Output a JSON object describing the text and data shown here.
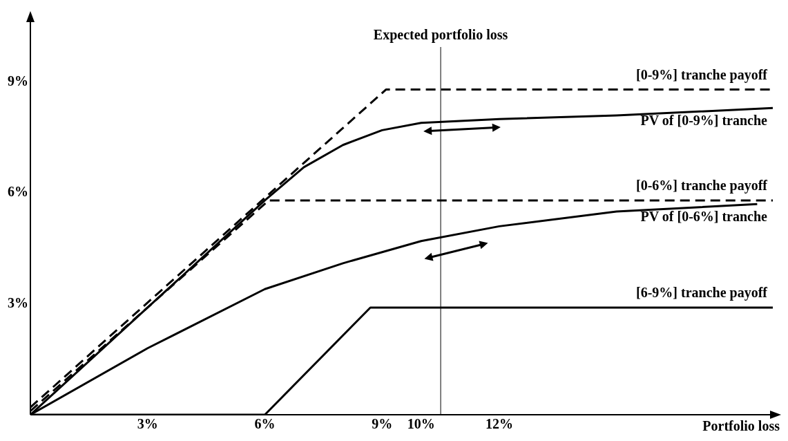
{
  "chart_data": {
    "type": "line",
    "xlabel": "Portfolio loss",
    "xlim": [
      0,
      19
    ],
    "ylim": [
      0,
      10.7
    ],
    "xticks": [
      {
        "value": 3,
        "label": "3%"
      },
      {
        "value": 6,
        "label": "6%"
      },
      {
        "value": 9,
        "label": "9%"
      },
      {
        "value": 10,
        "label": "10%"
      },
      {
        "value": 12,
        "label": "12%"
      }
    ],
    "yticks": [
      {
        "value": 3,
        "label": "3%"
      },
      {
        "value": 6,
        "label": "6%"
      },
      {
        "value": 9,
        "label": "9%"
      }
    ],
    "grid": false,
    "legend": false,
    "marker": "none",
    "ref_lines": [
      {
        "axis": "x",
        "value": 10.5,
        "label": "Expected portfolio loss",
        "color": "#000000"
      }
    ],
    "series": [
      {
        "name": "[0-9%] tranche payoff",
        "color": "#000000",
        "line_style": "dashed",
        "x": [
          0,
          9.1,
          19
        ],
        "values": [
          0.2,
          8.8,
          8.8
        ]
      },
      {
        "name": "PV of [0-9%] tranche",
        "color": "#000000",
        "line_style": "solid",
        "x": [
          0,
          3,
          6,
          7,
          8,
          9,
          10,
          12,
          15,
          19
        ],
        "values": [
          0,
          2.9,
          5.8,
          6.7,
          7.3,
          7.7,
          7.9,
          8.0,
          8.1,
          8.3
        ]
      },
      {
        "name": "[0-6%] tranche payoff",
        "color": "#000000",
        "line_style": "dashed",
        "x": [
          0,
          6.1,
          19
        ],
        "values": [
          0.1,
          5.8,
          5.8
        ]
      },
      {
        "name": "PV of [0-6%] tranche",
        "color": "#000000",
        "line_style": "solid",
        "x": [
          0,
          3,
          6,
          8,
          10,
          12,
          15,
          18.6
        ],
        "values": [
          0,
          1.8,
          3.4,
          4.1,
          4.7,
          5.1,
          5.5,
          5.7
        ]
      },
      {
        "name": "[6-9%] tranche payoff",
        "color": "#000000",
        "line_style": "solid",
        "x": [
          0,
          6,
          8.7,
          19
        ],
        "values": [
          0,
          0,
          2.9,
          2.9
        ]
      }
    ]
  }
}
